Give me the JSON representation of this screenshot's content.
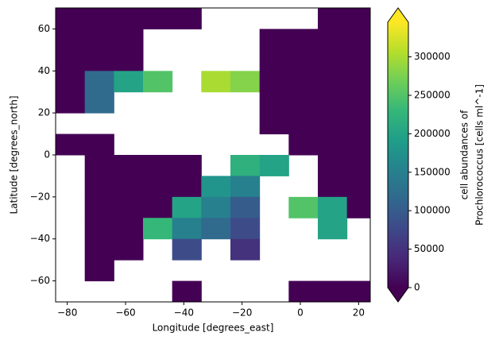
{
  "chart_data": {
    "type": "heatmap",
    "xlabel": "Longitude [degrees_east]",
    "ylabel": "Latitude [degrees_north]",
    "x_edges": [
      -84,
      -74,
      -64,
      -54,
      -44,
      -34,
      -24,
      -14,
      -4,
      6,
      16,
      24
    ],
    "y_edges": [
      70,
      60,
      50,
      40,
      30,
      20,
      10,
      0,
      -10,
      -20,
      -30,
      -40,
      -50,
      -60,
      -70
    ],
    "values": [
      [
        0,
        0,
        0,
        0,
        0,
        null,
        null,
        null,
        null,
        0,
        0
      ],
      [
        0,
        0,
        0,
        null,
        null,
        null,
        null,
        0,
        0,
        0,
        0
      ],
      [
        0,
        0,
        0,
        null,
        null,
        null,
        null,
        0,
        0,
        0,
        0
      ],
      [
        0,
        120000,
        200000,
        250000,
        null,
        300000,
        280000,
        0,
        0,
        0,
        0
      ],
      [
        0,
        120000,
        null,
        null,
        null,
        null,
        null,
        0,
        0,
        0,
        0
      ],
      [
        null,
        null,
        null,
        null,
        null,
        null,
        null,
        0,
        0,
        0,
        0
      ],
      [
        0,
        0,
        null,
        null,
        null,
        null,
        null,
        null,
        0,
        0,
        0
      ],
      [
        null,
        0,
        0,
        0,
        0,
        null,
        220000,
        200000,
        null,
        0,
        0
      ],
      [
        null,
        0,
        0,
        0,
        0,
        180000,
        150000,
        null,
        null,
        0,
        0
      ],
      [
        null,
        0,
        0,
        0,
        200000,
        150000,
        100000,
        null,
        250000,
        200000,
        0
      ],
      [
        null,
        0,
        0,
        230000,
        150000,
        120000,
        80000,
        null,
        null,
        200000,
        null
      ],
      [
        null,
        0,
        0,
        null,
        80000,
        null,
        50000,
        null,
        null,
        null,
        null
      ],
      [
        null,
        0,
        null,
        null,
        null,
        null,
        null,
        null,
        null,
        null,
        null
      ],
      [
        null,
        null,
        null,
        null,
        0,
        null,
        null,
        null,
        0,
        0,
        0
      ]
    ],
    "xlim": [
      -84,
      24
    ],
    "ylim": [
      -70,
      70
    ],
    "xticks": [
      {
        "value": -80,
        "label": "−80"
      },
      {
        "value": -60,
        "label": "−60"
      },
      {
        "value": -40,
        "label": "−40"
      },
      {
        "value": -20,
        "label": "−20"
      },
      0,
      20
    ],
    "yticks": [
      {
        "value": -60,
        "label": "−60"
      },
      {
        "value": -40,
        "label": "−40"
      },
      {
        "value": -20,
        "label": "−20"
      },
      0,
      20,
      40,
      60
    ],
    "colorbar": {
      "label": [
        "cell abundances of",
        "Prochlorococcus [cells ml^-1]"
      ],
      "clim": [
        0,
        345000
      ],
      "ticks": [
        0,
        50000,
        100000,
        150000,
        200000,
        250000,
        300000
      ],
      "colors": [
        "#440154",
        "#482878",
        "#3e4989",
        "#31688e",
        "#26828e",
        "#1f9e89",
        "#35b779",
        "#6ece58",
        "#b5de2b",
        "#fde725"
      ],
      "extend": "both"
    }
  }
}
